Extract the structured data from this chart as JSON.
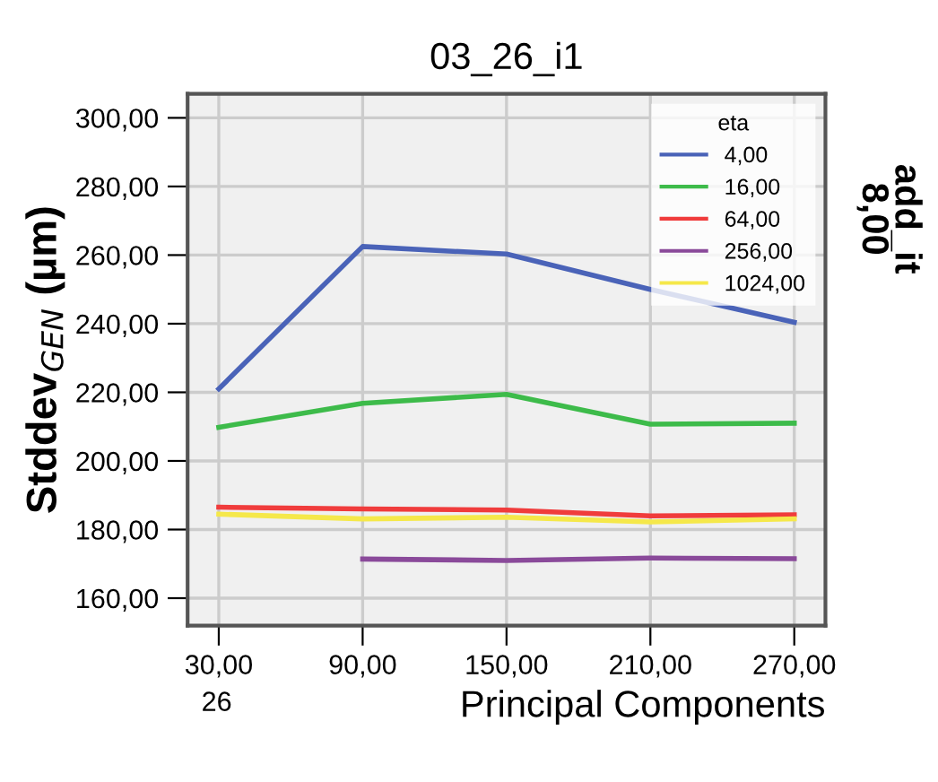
{
  "chart_data": {
    "type": "line",
    "title": "03_26_i1",
    "xlabel": "Principal Components",
    "ylabel": "Stddev$_{GEN}$ (µm)",
    "legend_title": "eta",
    "annotations": [
      "add_it",
      "8,00",
      "26"
    ],
    "x": [
      30,
      90,
      150,
      210,
      270
    ],
    "xlim": [
      17,
      283
    ],
    "xticks": [
      {
        "value": 30,
        "label": "30,00"
      },
      {
        "value": 90,
        "label": "90,00"
      },
      {
        "value": 150,
        "label": "150,00"
      },
      {
        "value": 210,
        "label": "210,00"
      },
      {
        "value": 270,
        "label": "270,00"
      }
    ],
    "ylim": [
      152,
      307
    ],
    "yticks": [
      {
        "value": 160,
        "label": "160,00"
      },
      {
        "value": 180,
        "label": "180,00"
      },
      {
        "value": 200,
        "label": "200,00"
      },
      {
        "value": 220,
        "label": "220,00"
      },
      {
        "value": 240,
        "label": "240,00"
      },
      {
        "value": 260,
        "label": "260,00"
      },
      {
        "value": 280,
        "label": "280,00"
      },
      {
        "value": 300,
        "label": "300,00"
      }
    ],
    "grid": true,
    "legend": "top right",
    "marker": "none",
    "line_style": "solid",
    "series": [
      {
        "name": "4,00",
        "color": "#4a63b8",
        "values": [
          221,
          262.5,
          260.3,
          250,
          240.4
        ]
      },
      {
        "name": "16,00",
        "color": "#3dbb4a",
        "values": [
          209.8,
          216.8,
          219.4,
          210.7,
          211
        ]
      },
      {
        "name": "64,00",
        "color": "#f03c3c",
        "values": [
          186.5,
          186,
          185.7,
          184,
          184.3
        ]
      },
      {
        "name": "256,00",
        "color": "#8a4a9a",
        "values": [
          null,
          171.4,
          171,
          171.7,
          171.5
        ]
      },
      {
        "name": "1024,00",
        "color": "#f5e84a",
        "values": [
          184.5,
          183.1,
          183.6,
          182.2,
          183.1
        ]
      }
    ]
  }
}
